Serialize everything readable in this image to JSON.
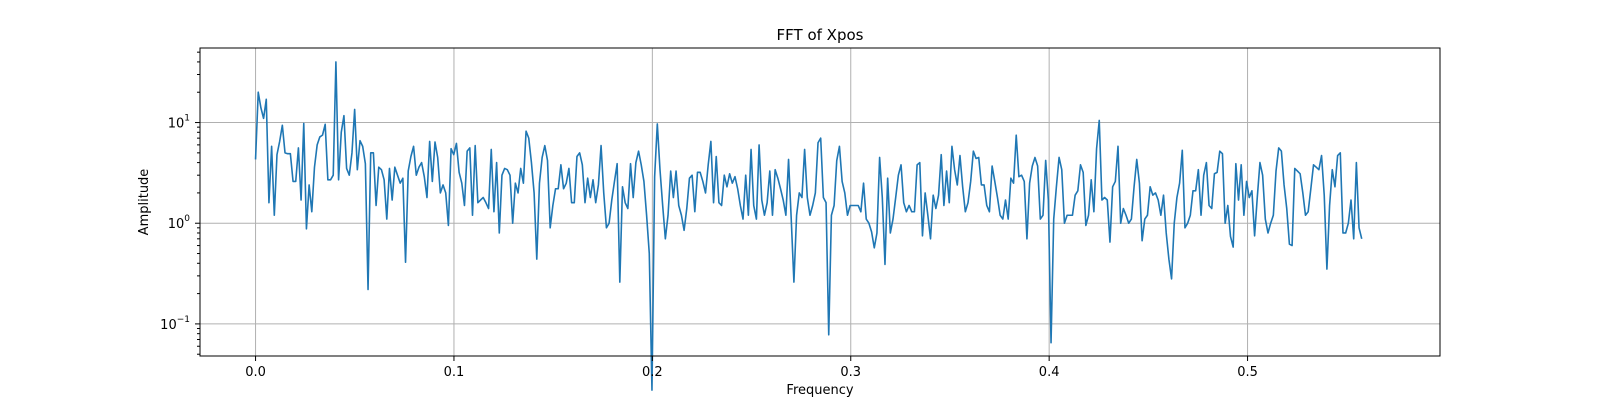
{
  "chart_data": {
    "type": "line",
    "title": "FFT of Xpos",
    "xlabel": "Frequency",
    "ylabel": "Amplitude",
    "xlim": [
      -0.028,
      0.597
    ],
    "ylim": [
      0.048,
      55
    ],
    "yscale": "log",
    "grid": true,
    "x_ticks": [
      {
        "value": 0.0,
        "label": "0.0"
      },
      {
        "value": 0.1,
        "label": "0.1"
      },
      {
        "value": 0.2,
        "label": "0.2"
      },
      {
        "value": 0.3,
        "label": "0.3"
      },
      {
        "value": 0.4,
        "label": "0.4"
      },
      {
        "value": 0.5,
        "label": "0.5"
      }
    ],
    "y_ticks": [
      {
        "value": 0.1,
        "base": "10",
        "exp": "−1"
      },
      {
        "value": 1,
        "base": "10",
        "exp": "0"
      },
      {
        "value": 10,
        "base": "10",
        "exp": "1"
      }
    ],
    "series": [
      {
        "color": "#1f77b4",
        "x_start": 0.0,
        "x_step": 0.00135,
        "values": [
          4.3,
          20,
          14,
          11,
          17,
          1.6,
          5.8,
          1.2,
          4.8,
          6.5,
          9.4,
          5,
          4.9,
          4.9,
          2.6,
          2.6,
          5.6,
          1.7,
          9.8,
          0.88,
          2.4,
          1.3,
          3.6,
          6,
          7.2,
          7.5,
          9.6,
          2.7,
          2.7,
          3,
          40,
          2.7,
          8,
          11.7,
          3.5,
          3,
          5,
          13.5,
          3.4,
          6.6,
          5.8,
          3.9,
          0.22,
          5,
          5,
          1.5,
          3.6,
          3.4,
          2.7,
          1.1,
          3.5,
          1.7,
          3.6,
          3,
          2.5,
          2.8,
          0.41,
          3.3,
          4.6,
          5.8,
          3,
          3.6,
          4,
          2.9,
          1.8,
          6.5,
          2.6,
          6.4,
          4.5,
          2,
          2.4,
          2,
          0.95,
          5.5,
          4.8,
          6.2,
          3.2,
          2.5,
          1.5,
          5.2,
          5.6,
          1.2,
          5.9,
          1.6,
          1.7,
          1.8,
          1.6,
          1.4,
          5.4,
          1.3,
          4,
          0.8,
          3,
          3.5,
          3.4,
          3,
          1,
          2.5,
          2,
          3.5,
          2.5,
          8.2,
          7,
          4,
          2,
          0.44,
          2.5,
          4.5,
          5.9,
          4.2,
          0.9,
          1.5,
          2.2,
          2.2,
          3.8,
          2.2,
          2.5,
          3.5,
          1.6,
          1.6,
          4.6,
          5,
          3.8,
          1.6,
          2.8,
          1.8,
          2.7,
          1.6,
          2.4,
          5.9,
          2,
          0.9,
          1,
          1.7,
          2.6,
          3.9,
          0.26,
          2.3,
          1.6,
          1.4,
          3.9,
          1.8,
          4,
          5.2,
          3.8,
          2.6,
          1.2,
          0.5,
          0.022,
          2.9,
          9.7,
          3.4,
          1.5,
          0.7,
          1.2,
          3.3,
          1.8,
          3.3,
          1.5,
          1.2,
          0.85,
          1.4,
          2.8,
          3,
          1.3,
          3.2,
          3.2,
          2.6,
          2,
          3.8,
          6.5,
          1.6,
          4.6,
          1.6,
          1.5,
          3,
          2.3,
          3.1,
          2.5,
          2.9,
          2.2,
          1.5,
          1.1,
          3,
          1.2,
          5.4,
          1.5,
          1.1,
          6,
          1.7,
          1.2,
          1.6,
          3.3,
          1.2,
          3.4,
          2.8,
          2.2,
          1.7,
          1.2,
          4.3,
          1.1,
          0.26,
          1.2,
          2,
          1.8,
          5.4,
          1.8,
          1.2,
          1.5,
          2,
          6.3,
          7,
          1.8,
          1.6,
          0.078,
          1.2,
          1.5,
          4.2,
          5.8,
          2.6,
          2,
          1.2,
          1.5,
          1.5,
          1.5,
          1.5,
          1.3,
          2.5,
          1.1,
          1,
          0.82,
          0.57,
          0.8,
          4.5,
          1.8,
          0.39,
          2.8,
          0.8,
          1.1,
          1.8,
          3,
          3.8,
          1.6,
          1.3,
          1.5,
          1.3,
          1.3,
          3.8,
          4,
          0.75,
          2,
          1.2,
          0.7,
          1.9,
          1.4,
          1.9,
          4.8,
          1.5,
          3.3,
          1.6,
          5.8,
          3.4,
          2.4,
          4.7,
          2.3,
          1.3,
          1.6,
          2.6,
          5.2,
          4.4,
          4.5,
          2.4,
          2.4,
          1.5,
          1.3,
          3.7,
          2.6,
          1.8,
          1.2,
          1.1,
          1.7,
          1.1,
          2.8,
          2.5,
          7.5,
          2.9,
          3,
          2.6,
          0.7,
          2.5,
          3.7,
          4.5,
          3.7,
          1.1,
          1.2,
          4.2,
          1.7,
          0.065,
          1.1,
          2.3,
          4.5,
          3.4,
          1,
          1.2,
          1.2,
          1.2,
          1.9,
          2.1,
          3.8,
          3.2,
          0.95,
          1.2,
          2.7,
          1.3,
          5.5,
          10.5,
          1.7,
          1.8,
          1.7,
          0.65,
          2.3,
          2.6,
          5.8,
          1,
          1.4,
          1.2,
          1,
          1.1,
          2.3,
          4.3,
          2.5,
          0.67,
          1.1,
          1.2,
          2.3,
          1.9,
          2,
          1.7,
          1.2,
          1.9,
          0.8,
          0.44,
          0.28,
          1,
          1.8,
          2.5,
          5.3,
          0.9,
          1,
          1.2,
          2.1,
          2.1,
          3.4,
          1.2,
          3,
          4,
          1.5,
          1.4,
          3.1,
          3.2,
          5.2,
          4.9,
          1,
          1.5,
          0.74,
          0.58,
          3.9,
          1.7,
          3.8,
          1.2,
          2.6,
          1.8,
          2.1,
          0.75,
          1.8,
          4,
          3,
          1.1,
          0.8,
          1,
          1.2,
          3.3,
          5.6,
          5.2,
          2.4,
          1.4,
          0.62,
          0.6,
          3.5,
          3.3,
          3.1,
          2,
          1.2,
          1.3,
          2.2,
          3.8,
          3.6,
          3.4,
          4.7,
          1.9,
          0.35,
          1.5,
          3.4,
          2.3,
          4.7,
          5,
          0.8,
          0.8,
          1,
          1.7,
          0.7,
          4,
          0.9,
          0.7
        ]
      }
    ]
  }
}
